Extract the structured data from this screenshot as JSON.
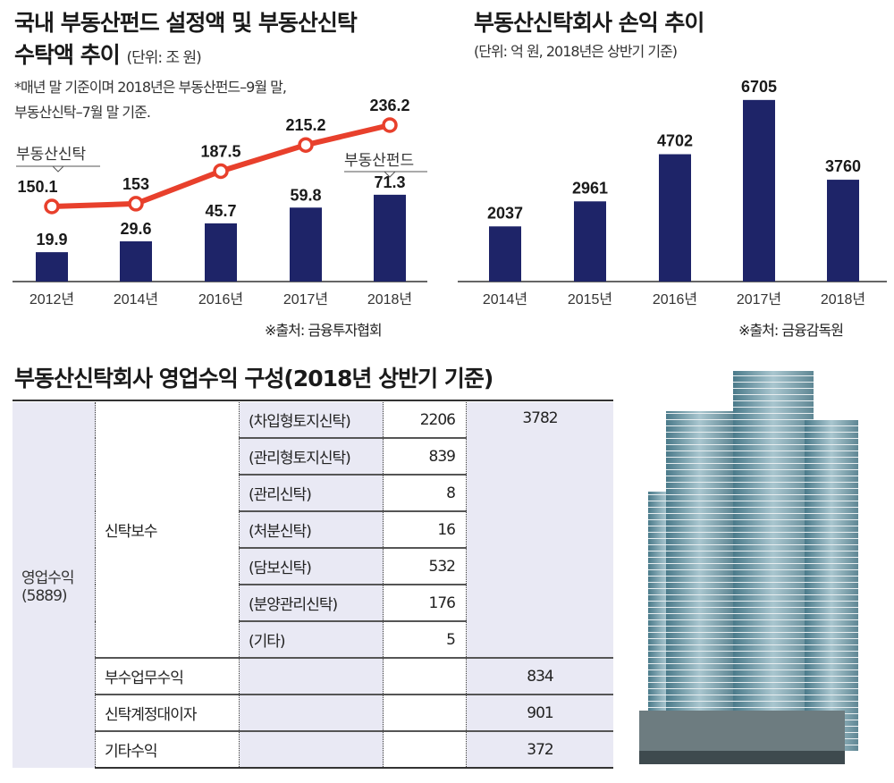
{
  "left_chart": {
    "title_line1": "국내 부동산펀드 설정액 및 부동산신탁",
    "title_line2": "수탁액 추이",
    "unit": "(단위: 조 원)",
    "note_line1": "*매년 말 기준이며 2018년은 부동산펀드–9월 말,",
    "note_line2": "부동산신탁–7월 말 기준.",
    "source": "※출처: 금융투자협회",
    "line_label": "부동산신탁",
    "bar_label": "부동산펀드"
  },
  "right_chart": {
    "title": "부동산신탁회사 손익 추이",
    "unit": "(단위: 억 원, 2018년은 상반기 기준)",
    "source": "※출처: 금융감독원"
  },
  "chart_data": [
    {
      "type": "bar+line",
      "categories": [
        "2012년",
        "2014년",
        "2016년",
        "2017년",
        "2018년"
      ],
      "series": [
        {
          "name": "부동산펀드",
          "type": "bar",
          "values": [
            19.9,
            29.6,
            45.7,
            59.8,
            71.3
          ],
          "labels": [
            "19.9",
            "29.6",
            "45.7",
            "59.8",
            "71.3"
          ]
        },
        {
          "name": "부동산신탁",
          "type": "line",
          "values": [
            150.1,
            153,
            187.5,
            215.2,
            236.2
          ],
          "labels": [
            "150.1",
            "153",
            "187.5",
            "215.2",
            "236.2"
          ]
        }
      ],
      "colors": {
        "bar": "#1e2468",
        "line": "#e8402c"
      }
    },
    {
      "type": "bar",
      "categories": [
        "2014년",
        "2015년",
        "2016년",
        "2017년",
        "2018년"
      ],
      "values": [
        2037,
        2961,
        4702,
        6705,
        3760
      ],
      "labels": [
        "2037",
        "2961",
        "4702",
        "6705",
        "3760"
      ],
      "colors": {
        "bar": "#1e2468"
      }
    }
  ],
  "table": {
    "title": "부동산신탁회사 영업수익 구성(2018년 상반기 기준)",
    "total_label": "영업수익",
    "total_value": "(5889)",
    "fee_label": "신탁보수",
    "fee_total": "3782",
    "fee_items": [
      {
        "label": "(차입형토지신탁)",
        "value": "2206"
      },
      {
        "label": "(관리형토지신탁)",
        "value": "839"
      },
      {
        "label": "(관리신탁)",
        "value": "8"
      },
      {
        "label": "(처분신탁)",
        "value": "16"
      },
      {
        "label": "(담보신탁)",
        "value": "532"
      },
      {
        "label": "(분양관리신탁)",
        "value": "176"
      },
      {
        "label": "(기타)",
        "value": "5"
      }
    ],
    "other_rows": [
      {
        "label": "부수업무수익",
        "value": "834"
      },
      {
        "label": "신탁계정대이자",
        "value": "901"
      },
      {
        "label": "기타수익",
        "value": "372"
      }
    ]
  }
}
